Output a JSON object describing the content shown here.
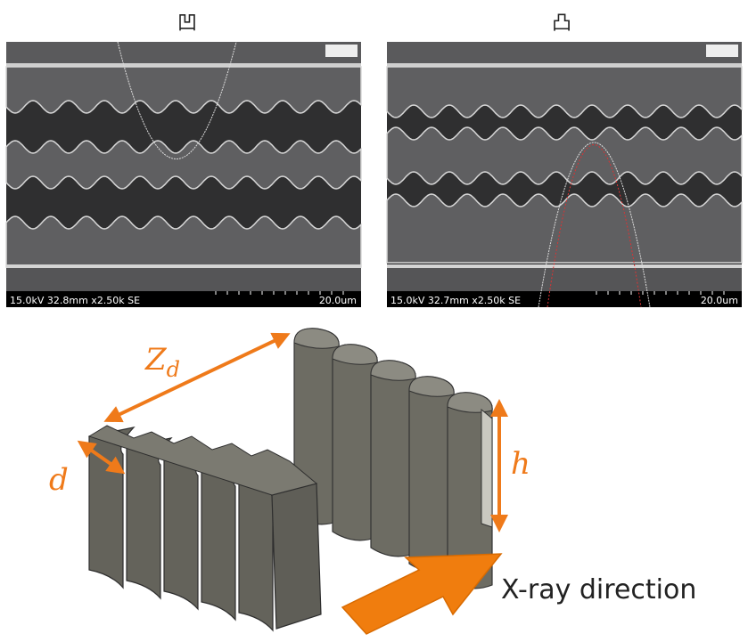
{
  "figure": {
    "left_panel": {
      "symbol": "凹",
      "info": "15.0kV 32.8mm x2.50k SE",
      "scale": "20.0um"
    },
    "right_panel": {
      "symbol": "凸",
      "info": "15.0kV 32.7mm x2.50k SE",
      "scale": "20.0um"
    },
    "labels": {
      "z": "Z",
      "z_sub": "d",
      "d": "d",
      "h": "h",
      "xray": "X-ray direction"
    }
  }
}
